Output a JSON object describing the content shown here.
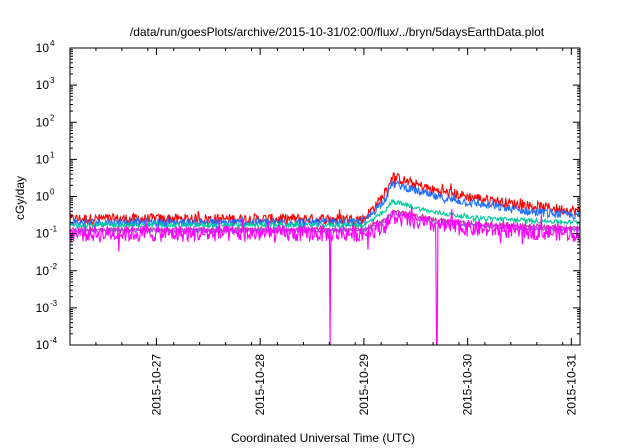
{
  "chart_data": {
    "type": "line",
    "title": "/data/run/goesPlots/archive/2015-10-31/02:00/flux/../bryn/5daysEarthData.plot",
    "xlabel": "Coordinated Universal Time (UTC)",
    "ylabel": "cGy/day",
    "yscale": "log",
    "ylim": [
      0.0001,
      10000
    ],
    "xlim": [
      "2015-10-26T04:00",
      "2015-10-31T02:00"
    ],
    "xticks": [
      "2015-10-27",
      "2015-10-28",
      "2015-10-29",
      "2015-10-30",
      "2015-10-31"
    ],
    "yticks": [
      {
        "base": "10",
        "exp": "-4",
        "value": 0.0001
      },
      {
        "base": "10",
        "exp": "-3",
        "value": 0.001
      },
      {
        "base": "10",
        "exp": "-2",
        "value": 0.01
      },
      {
        "base": "10",
        "exp": "-1",
        "value": 0.1
      },
      {
        "base": "10",
        "exp": "0",
        "value": 1
      },
      {
        "base": "10",
        "exp": "1",
        "value": 10
      },
      {
        "base": "10",
        "exp": "2",
        "value": 100
      },
      {
        "base": "10",
        "exp": "3",
        "value": 1000
      },
      {
        "base": "10",
        "exp": "4",
        "value": 10000
      }
    ],
    "grid": false,
    "legend": "none",
    "series": [
      {
        "color": "#ff0000",
        "noise": 0.28,
        "x": [
          "2015-10-26T04:00",
          "2015-10-29T00:00",
          "2015-10-29T05:00",
          "2015-10-29T06:30",
          "2015-10-29T10:00",
          "2015-10-29T16:00",
          "2015-10-30T00:00",
          "2015-10-30T12:00",
          "2015-10-31T02:00"
        ],
        "values": [
          0.25,
          0.25,
          1.2,
          3.5,
          2.5,
          1.5,
          1.0,
          0.6,
          0.4
        ]
      },
      {
        "color": "#1e6fff",
        "noise": 0.22,
        "x": [
          "2015-10-26T04:00",
          "2015-10-29T00:00",
          "2015-10-29T05:00",
          "2015-10-29T06:30",
          "2015-10-29T10:00",
          "2015-10-29T16:00",
          "2015-10-30T00:00",
          "2015-10-30T12:00",
          "2015-10-31T02:00"
        ],
        "values": [
          0.2,
          0.2,
          0.9,
          2.3,
          1.7,
          1.0,
          0.7,
          0.42,
          0.3
        ]
      },
      {
        "color": "#00cc99",
        "noise": 0.12,
        "x": [
          "2015-10-26T04:00",
          "2015-10-29T00:00",
          "2015-10-29T05:00",
          "2015-10-29T06:30",
          "2015-10-29T10:00",
          "2015-10-29T16:00",
          "2015-10-30T00:00",
          "2015-10-30T12:00",
          "2015-10-31T02:00"
        ],
        "values": [
          0.17,
          0.17,
          0.4,
          0.75,
          0.58,
          0.38,
          0.28,
          0.23,
          0.2
        ]
      },
      {
        "color": "#cc3399",
        "noise": 0.1,
        "x": [
          "2015-10-26T04:00",
          "2015-10-29T00:00",
          "2015-10-29T05:00",
          "2015-10-29T06:30",
          "2015-10-29T10:00",
          "2015-10-29T16:00",
          "2015-10-30T00:00",
          "2015-10-30T12:00",
          "2015-10-31T02:00"
        ],
        "values": [
          0.13,
          0.13,
          0.24,
          0.42,
          0.34,
          0.24,
          0.19,
          0.16,
          0.14
        ]
      },
      {
        "color": "#9955dd",
        "noise": 0.1,
        "x": [
          "2015-10-26T04:00",
          "2015-10-29T00:00",
          "2015-10-29T05:00",
          "2015-10-29T06:30",
          "2015-10-29T10:00",
          "2015-10-29T16:00",
          "2015-10-30T00:00",
          "2015-10-30T12:00",
          "2015-10-31T02:00"
        ],
        "values": [
          0.12,
          0.12,
          0.22,
          0.36,
          0.29,
          0.21,
          0.17,
          0.14,
          0.13
        ]
      },
      {
        "color": "#ff00ff",
        "noise": 0.45,
        "x": [
          "2015-10-26T04:00",
          "2015-10-29T00:00",
          "2015-10-29T05:00",
          "2015-10-29T06:30",
          "2015-10-29T10:00",
          "2015-10-29T16:00",
          "2015-10-30T00:00",
          "2015-10-30T12:00",
          "2015-10-31T02:00"
        ],
        "values": [
          0.1,
          0.1,
          0.17,
          0.28,
          0.23,
          0.17,
          0.14,
          0.12,
          0.1
        ],
        "dropouts": [
          [
            "2015-10-28T16:10",
            "2015-10-28T16:20"
          ],
          [
            "2015-10-29T16:45",
            "2015-10-29T17:05"
          ]
        ]
      }
    ]
  }
}
